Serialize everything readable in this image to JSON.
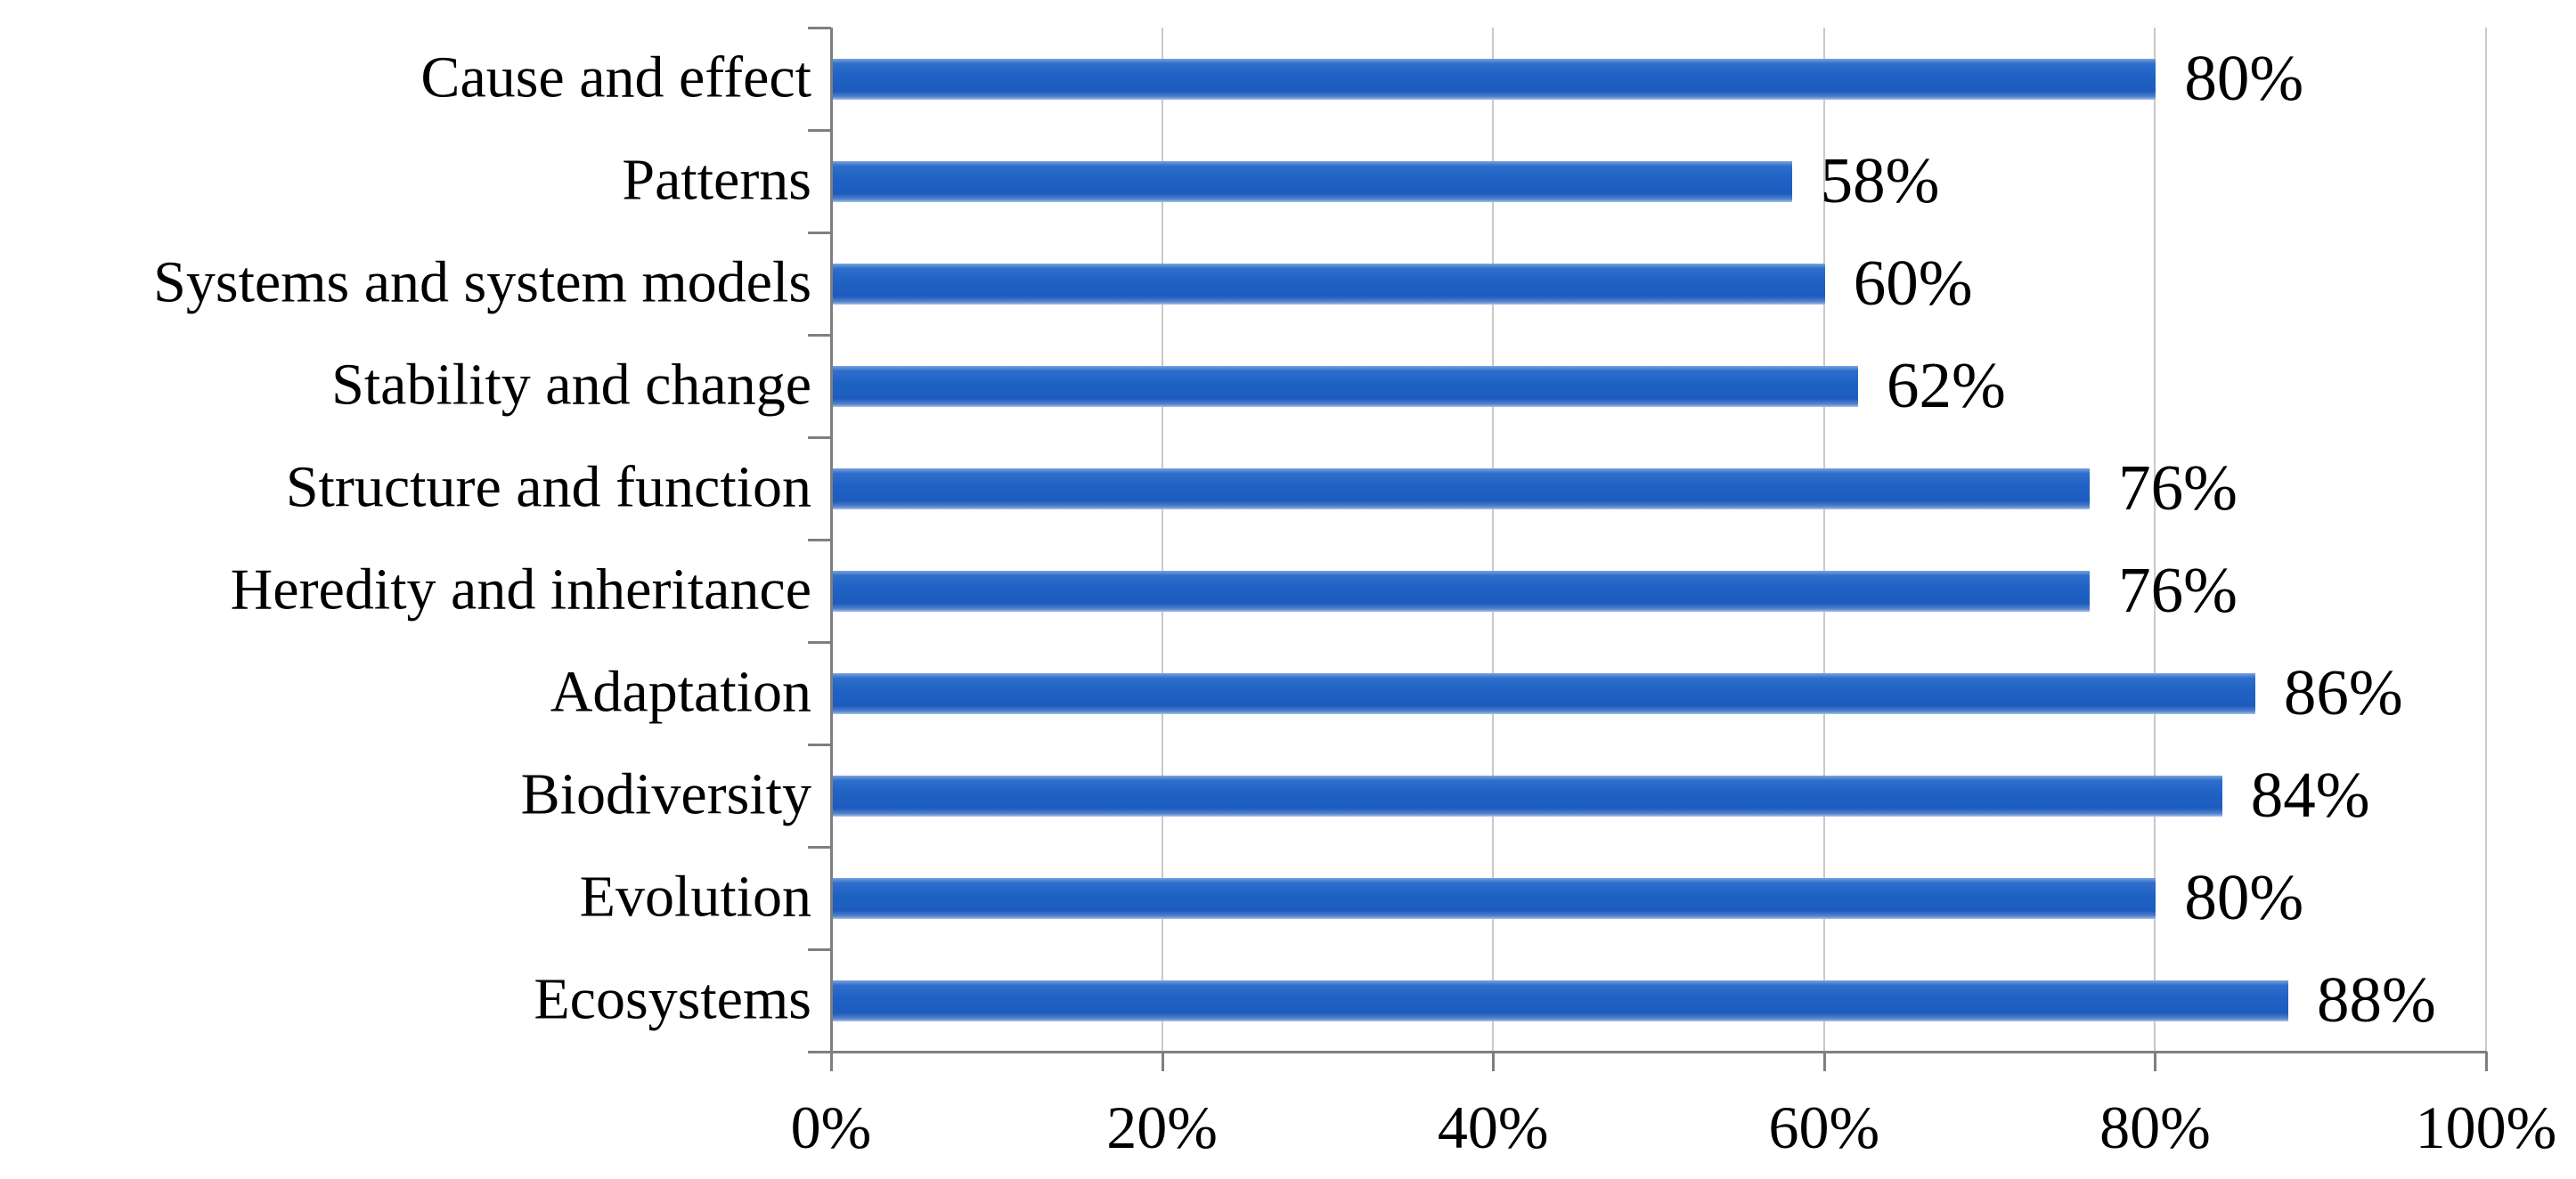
{
  "chart_data": {
    "type": "bar",
    "orientation": "horizontal",
    "title": "",
    "categories": [
      "Cause and effect",
      "Patterns",
      "Systems and system models",
      "Stability and change",
      "Structure and function",
      "Heredity and inheritance",
      "Adaptation",
      "Biodiversity",
      "Evolution",
      "Ecosystems"
    ],
    "values": [
      80,
      58,
      60,
      62,
      76,
      76,
      86,
      84,
      80,
      88
    ],
    "data_labels": [
      "80%",
      "58%",
      "60%",
      "62%",
      "76%",
      "76%",
      "86%",
      "84%",
      "80%",
      "88%"
    ],
    "xlabel": "",
    "ylabel": "",
    "xlim": [
      0,
      100
    ],
    "x_ticks": [
      0,
      20,
      40,
      60,
      80,
      100
    ],
    "x_tick_labels": [
      "0%",
      "20%",
      "40%",
      "60%",
      "80%",
      "100%"
    ],
    "grid": true,
    "legend": false,
    "colors": {
      "bar": "#1e61c4",
      "bar_gradient_top_edge": "#7ba3dd",
      "bar_gradient_upper": "#2e6ecb",
      "bar_gradient_main": "#1e61c4",
      "bar_gradient_lower": "#1d5cbd",
      "bar_gradient_bottom": "#5585cd",
      "bar_gradient_bottom_edge": "#aac2e6",
      "gridline": "#c9c9c9",
      "axis": "#7f7f7f",
      "text": "#000000"
    }
  }
}
